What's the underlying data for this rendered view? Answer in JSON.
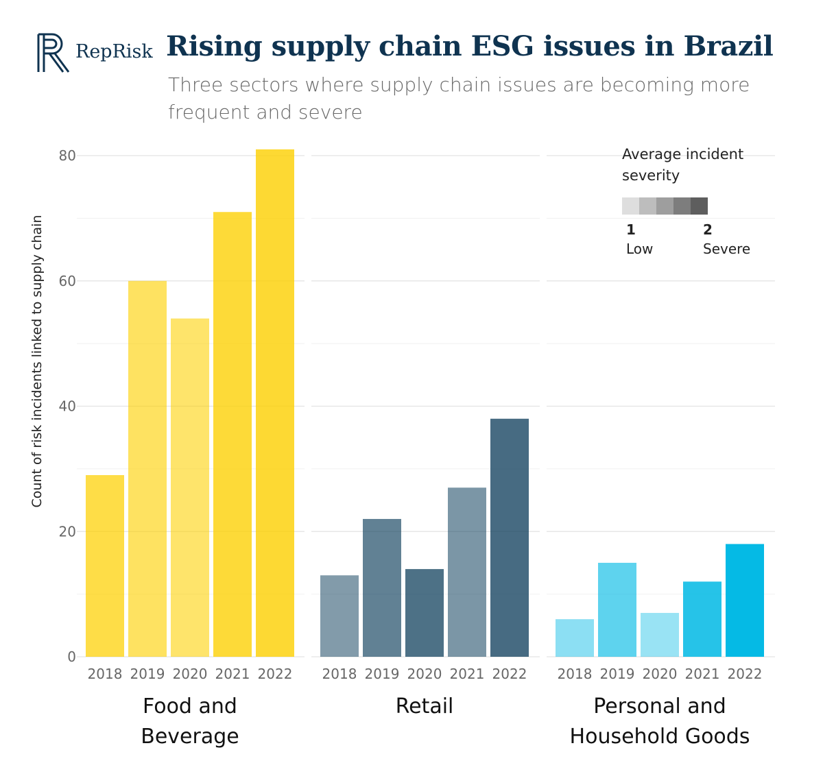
{
  "header": {
    "logo_text": "RepRisk",
    "title": "Rising supply chain ESG issues in Brazil",
    "subtitle": "Three sectors where supply chain issues are becoming more frequent and severe"
  },
  "legend": {
    "title": "Average incident severity",
    "low_value": "1",
    "low_label": "Low",
    "high_value": "2",
    "high_label": "Severe",
    "swatch_colors": [
      "#dedede",
      "#bdbdbd",
      "#9e9e9e",
      "#7d7d7d",
      "#5e5e5e"
    ]
  },
  "chart_data": {
    "type": "bar",
    "ylabel": "Count of risk incidents linked to supply chain",
    "ylim": [
      0,
      80
    ],
    "yticks": [
      0,
      20,
      40,
      60,
      80
    ],
    "categories": [
      "2018",
      "2019",
      "2020",
      "2021",
      "2022"
    ],
    "panels": [
      {
        "label_lines": [
          "Food and",
          "Beverage"
        ],
        "base_color": "#fdd000",
        "values": [
          29,
          60,
          54,
          71,
          81
        ],
        "opacity": [
          0.72,
          0.62,
          0.58,
          0.78,
          0.8
        ]
      },
      {
        "label_lines": [
          "Retail"
        ],
        "base_color": "#0f3f5c",
        "values": [
          13,
          22,
          14,
          27,
          38
        ],
        "opacity": [
          0.52,
          0.66,
          0.74,
          0.55,
          0.77
        ]
      },
      {
        "label_lines": [
          "Personal and",
          "Household Goods"
        ],
        "base_color": "#00b9e4",
        "values": [
          6,
          15,
          7,
          12,
          18
        ],
        "opacity": [
          0.45,
          0.63,
          0.4,
          0.85,
          0.98
        ]
      }
    ]
  }
}
